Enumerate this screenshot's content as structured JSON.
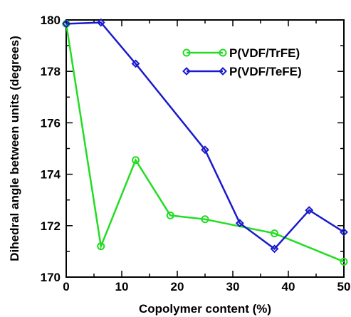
{
  "chart_data": {
    "type": "line",
    "xlabel": "Copolymer content (%)",
    "ylabel": "Dihedral angle between units (degrees)",
    "xlim": [
      0,
      50
    ],
    "ylim": [
      170,
      180
    ],
    "xticks": [
      0,
      10,
      20,
      30,
      40,
      50
    ],
    "yticks": [
      170,
      172,
      174,
      176,
      178,
      180
    ],
    "xtick_labels": [
      "0",
      "10",
      "20",
      "30",
      "40",
      "50"
    ],
    "ytick_labels": [
      "170",
      "172",
      "174",
      "176",
      "178",
      "180"
    ],
    "grid": false,
    "legend_position": "top-right",
    "series": [
      {
        "name": "P(VDF/TrFE)",
        "color": "#22dd22",
        "marker": "circle",
        "x": [
          0,
          6.25,
          12.5,
          18.75,
          25,
          37.5,
          50
        ],
        "y": [
          179.85,
          171.2,
          174.55,
          172.4,
          172.25,
          171.7,
          170.6
        ]
      },
      {
        "name": "P(VDF/TeFE)",
        "color": "#1a1acc",
        "marker": "diamond",
        "x": [
          0,
          6.25,
          12.5,
          25,
          31.25,
          37.5,
          43.75,
          50
        ],
        "y": [
          179.85,
          179.9,
          178.3,
          174.95,
          172.1,
          171.1,
          172.6,
          171.75
        ]
      }
    ]
  }
}
